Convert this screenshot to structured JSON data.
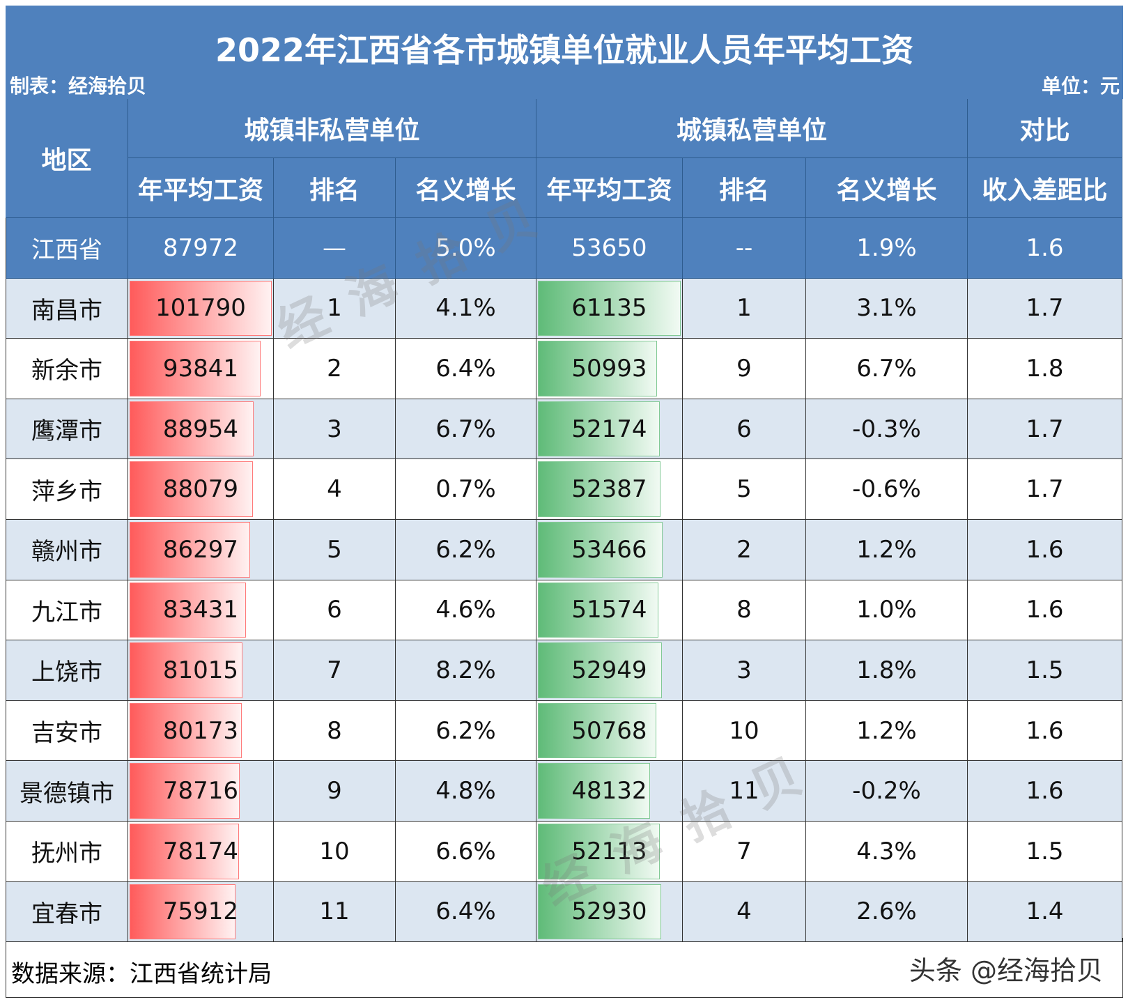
{
  "header": {
    "title": "2022年江西省各市城镇单位就业人员年平均工资",
    "maker": "制表：经海拾贝",
    "unit": "单位：元"
  },
  "table": {
    "region_header": "地区",
    "groups": [
      "城镇非私营单位",
      "城镇私营单位",
      "对比"
    ],
    "subheaders": [
      "年平均工资",
      "排名",
      "名义增长",
      "年平均工资",
      "排名",
      "名义增长",
      "收入差距比"
    ],
    "rows": [
      [
        "江西省",
        87972,
        "—",
        "5.0%",
        53650,
        "--",
        "1.9%",
        1.6
      ],
      [
        "南昌市",
        101790,
        1,
        "4.1%",
        61135,
        1,
        "3.1%",
        1.7
      ],
      [
        "新余市",
        93841,
        2,
        "6.4%",
        50993,
        9,
        "6.7%",
        1.8
      ],
      [
        "鹰潭市",
        88954,
        3,
        "6.7%",
        52174,
        6,
        "-0.3%",
        1.7
      ],
      [
        "萍乡市",
        88079,
        4,
        "0.7%",
        52387,
        5,
        "-0.6%",
        1.7
      ],
      [
        "赣州市",
        86297,
        5,
        "6.2%",
        53466,
        2,
        "1.2%",
        1.6
      ],
      [
        "九江市",
        83431,
        6,
        "4.6%",
        51574,
        8,
        "1.0%",
        1.6
      ],
      [
        "上饶市",
        81015,
        7,
        "8.2%",
        52949,
        3,
        "1.8%",
        1.5
      ],
      [
        "吉安市",
        80173,
        8,
        "6.2%",
        50768,
        10,
        "1.2%",
        1.6
      ],
      [
        "景德镇市",
        78716,
        9,
        "4.8%",
        48132,
        11,
        "-0.2%",
        1.6
      ],
      [
        "抚州市",
        78174,
        10,
        "6.6%",
        52113,
        7,
        "4.3%",
        1.5
      ],
      [
        "宜春市",
        75912,
        11,
        "6.4%",
        52930,
        4,
        "2.6%",
        1.4
      ]
    ]
  },
  "footer": {
    "source": "数据来源：江西省统计局",
    "credit": "头条 @经海拾贝"
  },
  "watermark": "经海拾贝"
}
